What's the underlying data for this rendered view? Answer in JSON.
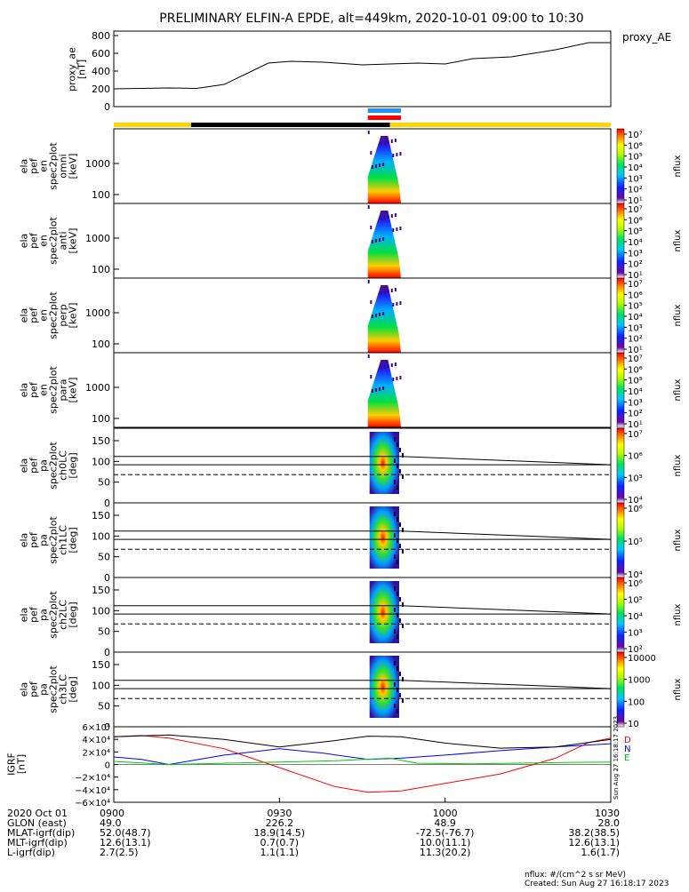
{
  "title": "PRELIMINARY ELFIN-A EPDE, alt=449km, 2020-10-01 09:00 to 10:30",
  "ae_panel": {
    "ylabel_lines": [
      "proxy_ae",
      "[nT]"
    ],
    "legend": "proxy_AE",
    "yticks": [
      "800",
      "600",
      "400",
      "200",
      "0"
    ]
  },
  "energy_panels": [
    {
      "ylabel_lines": [
        "ela",
        "pef",
        "en",
        "spec2plot",
        "omni",
        "[keV]"
      ],
      "yticks": [
        "1000",
        "100"
      ]
    },
    {
      "ylabel_lines": [
        "ela",
        "pef",
        "en",
        "spec2plot",
        "anti",
        "[keV]"
      ],
      "yticks": [
        "1000",
        "100"
      ]
    },
    {
      "ylabel_lines": [
        "ela",
        "pef",
        "en",
        "spec2plot",
        "perp",
        "[keV]"
      ],
      "yticks": [
        "1000",
        "100"
      ]
    },
    {
      "ylabel_lines": [
        "ela",
        "pef",
        "en",
        "spec2plot",
        "para",
        "[keV]"
      ],
      "yticks": [
        "1000",
        "100"
      ]
    }
  ],
  "pa_panels": [
    {
      "ylabel_lines": [
        "ela",
        "pef",
        "pa",
        "spec2plot",
        "ch0LC",
        "[deg]"
      ],
      "yticks": [
        "150",
        "100",
        "50",
        "0"
      ]
    },
    {
      "ylabel_lines": [
        "ela",
        "pef",
        "pa",
        "spec2plot",
        "ch1LC",
        "[deg]"
      ],
      "yticks": [
        "150",
        "100",
        "50",
        "0"
      ]
    },
    {
      "ylabel_lines": [
        "ela",
        "pef",
        "pa",
        "spec2plot",
        "ch2LC",
        "[deg]"
      ],
      "yticks": [
        "150",
        "100",
        "50",
        "0"
      ]
    },
    {
      "ylabel_lines": [
        "ela",
        "pef",
        "pa",
        "spec2plot",
        "ch3LC",
        "[deg]"
      ],
      "yticks": [
        "150",
        "100",
        "50",
        "0"
      ]
    }
  ],
  "colorbars": [
    {
      "label": "nflux",
      "ticks": [
        "10⁷",
        "10⁶",
        "10⁵",
        "10⁴",
        "10³",
        "10²",
        "10¹"
      ]
    },
    {
      "label": "nflux",
      "ticks": [
        "10⁷",
        "10⁶",
        "10⁵",
        "10⁴",
        "10³",
        "10²",
        "10¹"
      ]
    },
    {
      "label": "nflux",
      "ticks": [
        "10⁷",
        "10⁶",
        "10⁵",
        "10⁴",
        "10³",
        "10²",
        "10¹"
      ]
    },
    {
      "label": "nflux",
      "ticks": [
        "10⁷",
        "10⁶",
        "10⁵",
        "10⁴",
        "10³",
        "10²",
        "10¹"
      ]
    },
    {
      "label": "nflux",
      "ticks": [
        "10⁷",
        "10⁶",
        "10⁵",
        "10⁴"
      ]
    },
    {
      "label": "nflux",
      "ticks": [
        "10⁶",
        "10⁵",
        "10⁴"
      ]
    },
    {
      "label": "nflux",
      "ticks": [
        "10⁶",
        "10⁵",
        "10⁴",
        "10³",
        "10²"
      ]
    },
    {
      "label": "nflux",
      "ticks": [
        "10000",
        "1000",
        "100",
        "10"
      ]
    }
  ],
  "igrf_panel": {
    "ylabel_lines": [
      "IGRF",
      "[nT]"
    ],
    "yticks": [
      "6×10⁴",
      "4×10⁴",
      "2×10⁴",
      "0",
      "−2×10⁴",
      "−4×10⁴",
      "−6×10⁴"
    ],
    "legend": [
      "D",
      "N",
      "E"
    ],
    "colors": {
      "D": "#ff0000",
      "N": "#0000ff",
      "E": "#00cc00",
      "total": "#000000"
    },
    "side_stamp": "Sun Aug 27 16:18:17 2023"
  },
  "footer": {
    "rows": [
      {
        "label": "2020 Oct 01",
        "values": [
          "0900",
          "0930",
          "1000",
          "1030"
        ]
      },
      {
        "label": "GLON (east)",
        "values": [
          "49.0",
          "226.2",
          "48.9",
          "28.0"
        ]
      },
      {
        "label": "MLAT-igrf(dip)",
        "values": [
          "52.0(48.7)",
          "18.9(14.5)",
          "-72.5(-76.7)",
          "38.2(38.5)"
        ]
      },
      {
        "label": "MLT-igrf(dip)",
        "values": [
          "12.6(13.1)",
          "0.7(0.7)",
          "10.0(11.1)",
          "12.6(13.1)"
        ]
      },
      {
        "label": "L-igrf(dip)",
        "values": [
          "2.7(2.5)",
          "1.1(1.1)",
          "11.3(20.2)",
          "1.6(1.7)"
        ]
      }
    ],
    "note1": "nflux: #/(cm^2 s sr MeV)",
    "note2": "Created: Sun Aug 27 16:18:17 2023"
  },
  "chart_data": {
    "type": "line",
    "x_unit": "UT (2020-10-01)",
    "xlim": [
      "09:00",
      "10:30"
    ],
    "proxy_ae": {
      "name": "proxy_AE",
      "ylim": [
        0,
        850
      ],
      "points": [
        [
          "09:00",
          200
        ],
        [
          "09:10",
          210
        ],
        [
          "09:15",
          205
        ],
        [
          "09:20",
          250
        ],
        [
          "09:25",
          400
        ],
        [
          "09:28",
          490
        ],
        [
          "09:32",
          510
        ],
        [
          "09:38",
          500
        ],
        [
          "09:45",
          470
        ],
        [
          "09:50",
          480
        ],
        [
          "09:55",
          490
        ],
        [
          "10:00",
          480
        ],
        [
          "10:05",
          540
        ],
        [
          "10:12",
          560
        ],
        [
          "10:20",
          640
        ],
        [
          "10:26",
          720
        ],
        [
          "10:30",
          720
        ]
      ]
    },
    "igrf": {
      "ylim": [
        -60000,
        60000
      ],
      "series": [
        {
          "name": "D",
          "points": [
            [
              "09:00",
              44000
            ],
            [
              "09:05",
              46000
            ],
            [
              "09:10",
              42000
            ],
            [
              "09:20",
              25000
            ],
            [
              "09:30",
              -5000
            ],
            [
              "09:40",
              -35000
            ],
            [
              "09:46",
              -44000
            ],
            [
              "09:52",
              -42000
            ],
            [
              "10:00",
              -30000
            ],
            [
              "10:10",
              -15000
            ],
            [
              "10:20",
              10000
            ],
            [
              "10:26",
              35000
            ],
            [
              "10:30",
              42000
            ]
          ]
        },
        {
          "name": "N",
          "points": [
            [
              "09:00",
              12000
            ],
            [
              "09:05",
              8000
            ],
            [
              "09:10",
              0
            ],
            [
              "09:20",
              15000
            ],
            [
              "09:30",
              25000
            ],
            [
              "09:38",
              18000
            ],
            [
              "09:46",
              8000
            ],
            [
              "09:52",
              10000
            ],
            [
              "10:00",
              15000
            ],
            [
              "10:10",
              22000
            ],
            [
              "10:20",
              28000
            ],
            [
              "10:30",
              33000
            ]
          ]
        },
        {
          "name": "E",
          "points": [
            [
              "09:00",
              5000
            ],
            [
              "09:10",
              0
            ],
            [
              "09:20",
              2000
            ],
            [
              "09:30",
              4000
            ],
            [
              "09:40",
              6000
            ],
            [
              "09:50",
              10000
            ],
            [
              "09:55",
              2000
            ],
            [
              "10:05",
              1000
            ],
            [
              "10:20",
              3000
            ],
            [
              "10:30",
              4000
            ]
          ]
        },
        {
          "name": "total",
          "points": [
            [
              "09:00",
              44000
            ],
            [
              "09:10",
              47000
            ],
            [
              "09:20",
              40000
            ],
            [
              "09:30",
              28000
            ],
            [
              "09:40",
              38000
            ],
            [
              "09:46",
              45000
            ],
            [
              "09:52",
              44000
            ],
            [
              "10:00",
              34000
            ],
            [
              "10:10",
              26000
            ],
            [
              "10:20",
              28000
            ],
            [
              "10:30",
              40000
            ]
          ]
        }
      ]
    },
    "orbit_bar": {
      "segments": [
        {
          "from": "09:00",
          "to": "09:14",
          "color": "#ffd400"
        },
        {
          "from": "09:14",
          "to": "09:50",
          "color": "#000000"
        },
        {
          "from": "09:50",
          "to": "10:30",
          "color": "#ffd400"
        }
      ],
      "markers": [
        {
          "from": "09:46",
          "to": "09:52",
          "color": "#1e90ff"
        },
        {
          "from": "09:46",
          "to": "09:52",
          "color": "#ff0000"
        }
      ]
    },
    "spectrogram_burst": {
      "start": "09:46",
      "end": "09:52"
    }
  }
}
